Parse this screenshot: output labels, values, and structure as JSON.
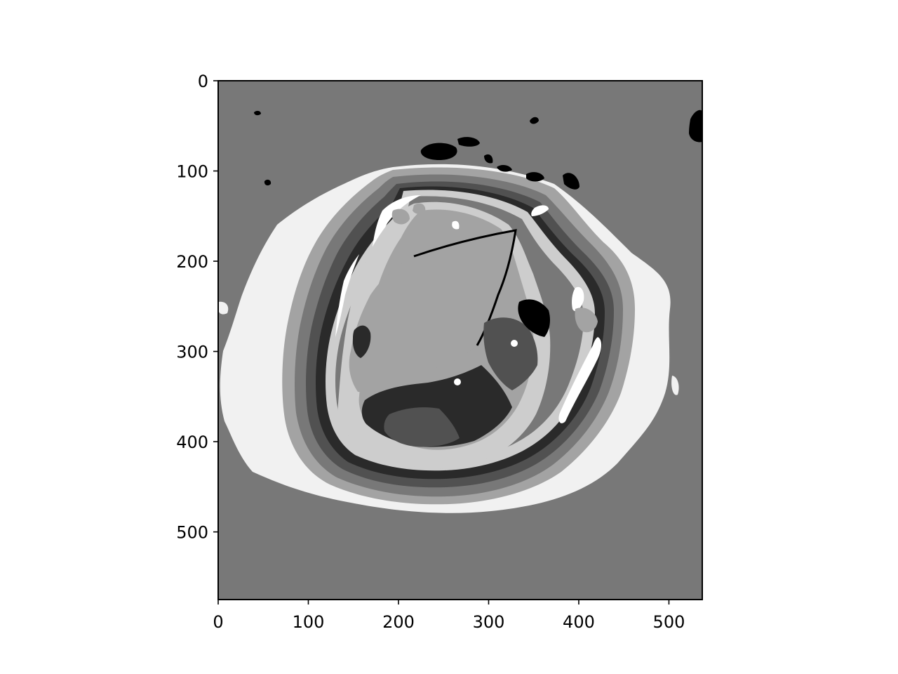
{
  "chart_data": {
    "type": "heatmap",
    "title": "",
    "xlabel": "",
    "ylabel": "",
    "colormap": "gray",
    "image_extent": {
      "x": [
        0,
        537
      ],
      "y": [
        0,
        575
      ]
    },
    "xlim": [
      0,
      537
    ],
    "ylim": [
      575,
      0
    ],
    "x_ticks": [
      0,
      100,
      200,
      300,
      400,
      500
    ],
    "y_ticks": [
      0,
      100,
      200,
      300,
      400,
      500
    ],
    "x_tick_labels": [
      "0",
      "100",
      "200",
      "300",
      "400",
      "500"
    ],
    "y_tick_labels": [
      "0",
      "100",
      "200",
      "300",
      "400",
      "500"
    ],
    "grid": false,
    "legend": "none",
    "gray_levels": [
      "#000000",
      "#2a2a2a",
      "#515151",
      "#787878",
      "#a3a3a3",
      "#cdcdcd",
      "#f1f1f1",
      "#ffffff"
    ],
    "background_color": "#787878"
  }
}
